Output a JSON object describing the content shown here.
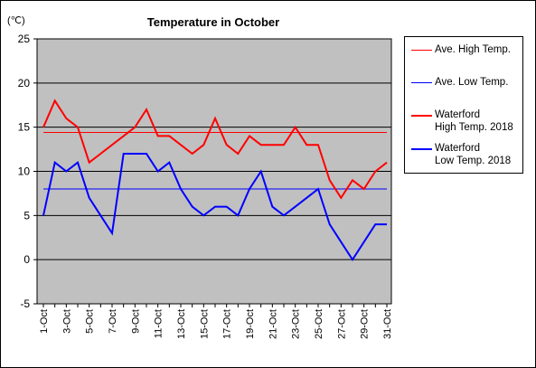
{
  "chart_data": {
    "type": "line",
    "title": "Temperature in October",
    "ylabel": "(℃)",
    "xlabel": "",
    "ylim": [
      -5,
      25
    ],
    "yticks": [
      -5,
      0,
      5,
      10,
      15,
      20,
      25
    ],
    "grid": true,
    "legend_position": "right",
    "categories": [
      "1-Oct",
      "2-Oct",
      "3-Oct",
      "4-Oct",
      "5-Oct",
      "6-Oct",
      "7-Oct",
      "8-Oct",
      "9-Oct",
      "10-Oct",
      "11-Oct",
      "12-Oct",
      "13-Oct",
      "14-Oct",
      "15-Oct",
      "16-Oct",
      "17-Oct",
      "18-Oct",
      "19-Oct",
      "20-Oct",
      "21-Oct",
      "22-Oct",
      "23-Oct",
      "24-Oct",
      "25-Oct",
      "26-Oct",
      "27-Oct",
      "28-Oct",
      "29-Oct",
      "30-Oct",
      "31-Oct"
    ],
    "tick_labels": [
      "1-Oct",
      "3-Oct",
      "5-Oct",
      "7-Oct",
      "9-Oct",
      "11-Oct",
      "13-Oct",
      "15-Oct",
      "17-Oct",
      "19-Oct",
      "21-Oct",
      "23-Oct",
      "25-Oct",
      "27-Oct",
      "29-Oct",
      "31-Oct"
    ],
    "series": [
      {
        "name": "Ave. High Temp.",
        "color": "#ff0000",
        "width": 1,
        "values": [
          14.4,
          14.4,
          14.4,
          14.4,
          14.4,
          14.4,
          14.4,
          14.4,
          14.4,
          14.4,
          14.4,
          14.4,
          14.4,
          14.4,
          14.4,
          14.4,
          14.4,
          14.4,
          14.4,
          14.4,
          14.4,
          14.4,
          14.4,
          14.4,
          14.4,
          14.4,
          14.4,
          14.4,
          14.4,
          14.4,
          14.4
        ]
      },
      {
        "name": "Ave. Low Temp.",
        "color": "#0000ff",
        "width": 1,
        "values": [
          8.0,
          8.0,
          8.0,
          8.0,
          8.0,
          8.0,
          8.0,
          8.0,
          8.0,
          8.0,
          8.0,
          8.0,
          8.0,
          8.0,
          8.0,
          8.0,
          8.0,
          8.0,
          8.0,
          8.0,
          8.0,
          8.0,
          8.0,
          8.0,
          8.0,
          8.0,
          8.0,
          8.0,
          8.0,
          8.0,
          8.0
        ]
      },
      {
        "name": "Waterford\nHigh Temp. 2018",
        "color": "#ff0000",
        "width": 2,
        "values": [
          15,
          18,
          16,
          15,
          11,
          12,
          13,
          14,
          15,
          17,
          14,
          14,
          13,
          12,
          13,
          16,
          13,
          12,
          14,
          13,
          13,
          13,
          15,
          13,
          13,
          9,
          7,
          9,
          8,
          10,
          11
        ]
      },
      {
        "name": "Waterford\nLow Temp. 2018",
        "color": "#0000ff",
        "width": 2,
        "values": [
          5,
          11,
          10,
          11,
          7,
          5,
          3,
          12,
          12,
          12,
          10,
          11,
          8,
          6,
          5,
          6,
          6,
          5,
          8,
          10,
          6,
          5,
          6,
          7,
          8,
          4,
          2,
          0,
          2,
          4,
          4
        ]
      }
    ]
  }
}
